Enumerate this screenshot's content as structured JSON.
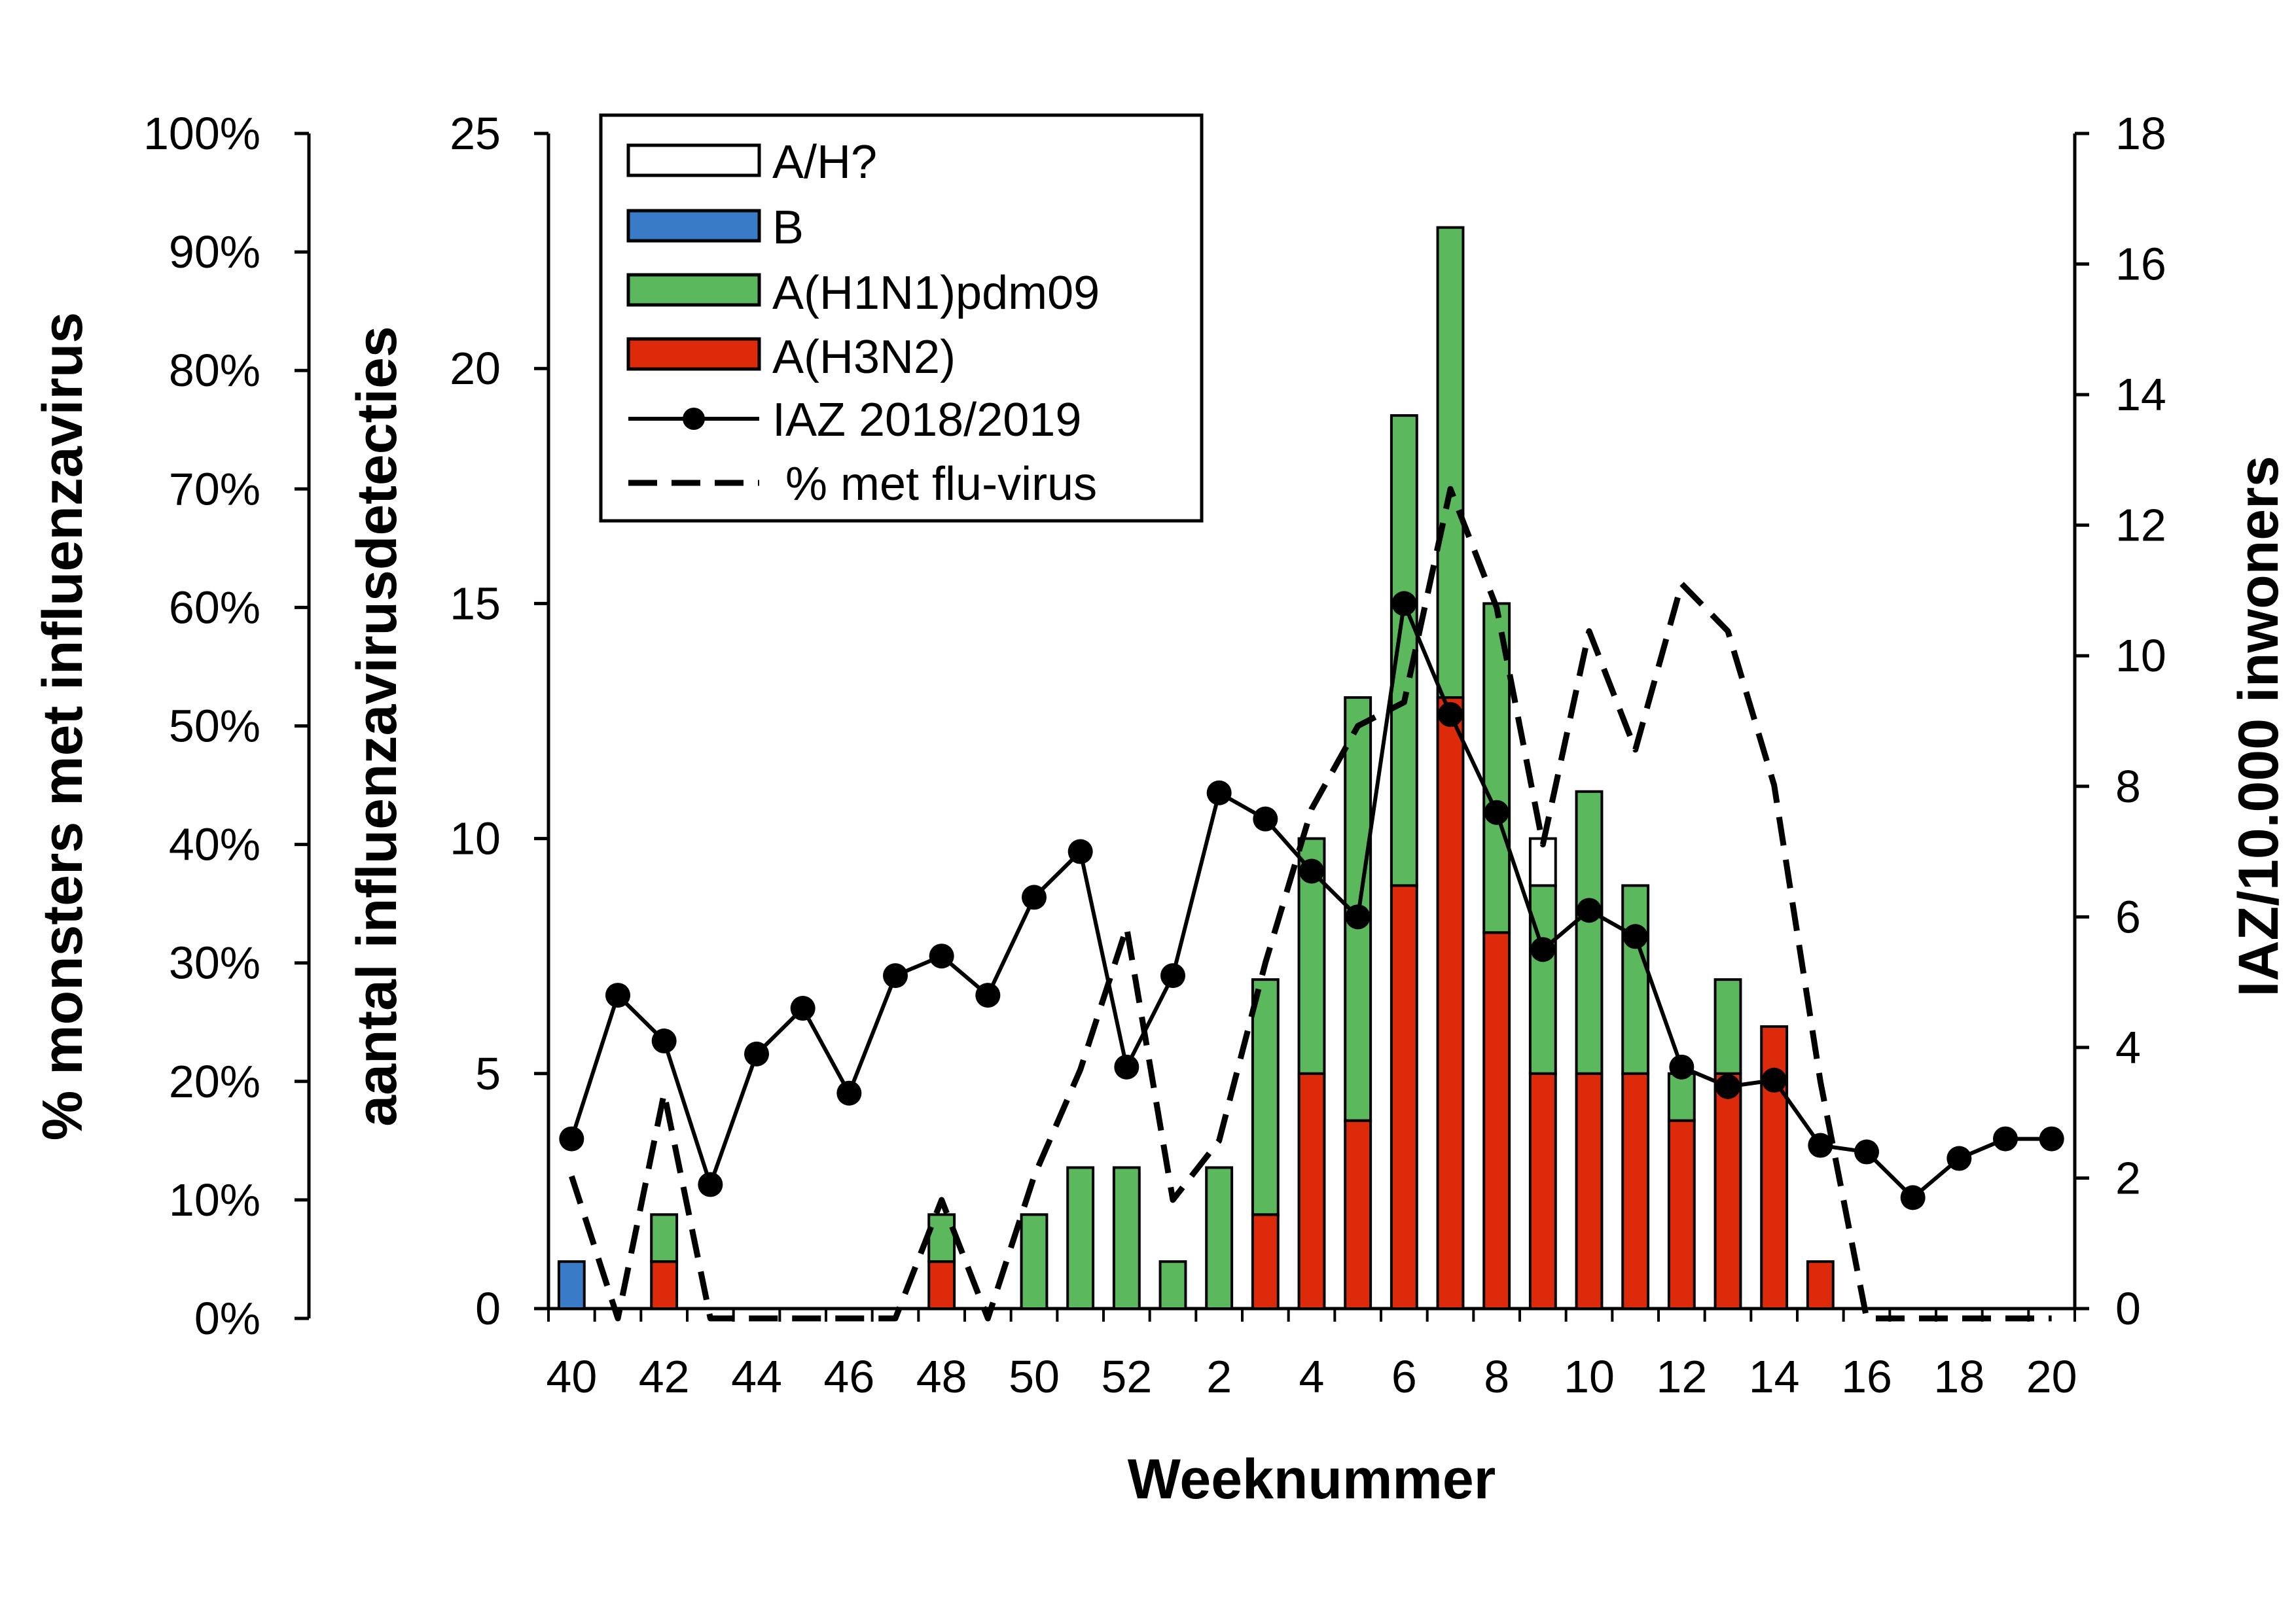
{
  "chart_data": {
    "type": "bar",
    "xlabel": "Weeknummer",
    "ylabel_left_outer": "% monsters met influenzavirus",
    "ylabel_left_inner": "aantal influenzavirusdetecties",
    "ylabel_right": "IAZ/10.000 inwoners",
    "y_left_outer_ticks": [
      "0%",
      "10%",
      "20%",
      "30%",
      "40%",
      "50%",
      "60%",
      "70%",
      "80%",
      "90%",
      "100%"
    ],
    "y_left_inner_ticks": [
      "0",
      "5",
      "10",
      "15",
      "20",
      "25"
    ],
    "y_right_ticks": [
      "0",
      "2",
      "4",
      "6",
      "8",
      "10",
      "12",
      "14",
      "16",
      "18"
    ],
    "ylim_left_outer": [
      0,
      100
    ],
    "ylim_left_inner": [
      0,
      25
    ],
    "ylim_right": [
      0,
      18
    ],
    "weeks": [
      40,
      41,
      42,
      43,
      44,
      45,
      46,
      47,
      48,
      49,
      50,
      51,
      52,
      1,
      2,
      3,
      4,
      5,
      6,
      7,
      8,
      9,
      10,
      11,
      12,
      13,
      14,
      15,
      16,
      17,
      18,
      19,
      20
    ],
    "x_tick_labels": [
      "40",
      "42",
      "44",
      "46",
      "48",
      "50",
      "52",
      "2",
      "4",
      "6",
      "8",
      "10",
      "12",
      "14",
      "16",
      "18",
      "20"
    ],
    "legend_position": "top-left",
    "grid": false,
    "stack_order": [
      "A(H3N2)",
      "A(H1N1)pdm09",
      "B",
      "A/H?"
    ],
    "series": [
      {
        "name": "A(H3N2)",
        "kind": "bar",
        "color": "#dd2a0a",
        "values": [
          0,
          0,
          1,
          0,
          0,
          0,
          0,
          0,
          1,
          0,
          0,
          0,
          0,
          0,
          0,
          2,
          5,
          4,
          9,
          13,
          8,
          5,
          5,
          5,
          4,
          5,
          6,
          1,
          0,
          0,
          0,
          0,
          0
        ]
      },
      {
        "name": "A(H1N1)pdm09",
        "kind": "bar",
        "color": "#5cb85c",
        "values": [
          0,
          0,
          1,
          0,
          0,
          0,
          0,
          0,
          1,
          0,
          2,
          3,
          3,
          1,
          3,
          5,
          5,
          9,
          10,
          10,
          7,
          4,
          6,
          4,
          1,
          2,
          0,
          0,
          0,
          0,
          0,
          0,
          0
        ]
      },
      {
        "name": "B",
        "kind": "bar",
        "color": "#3a7bc8",
        "values": [
          1,
          0,
          0,
          0,
          0,
          0,
          0,
          0,
          0,
          0,
          0,
          0,
          0,
          0,
          0,
          0,
          0,
          0,
          0,
          0,
          0,
          0,
          0,
          0,
          0,
          0,
          0,
          0,
          0,
          0,
          0,
          0,
          0
        ]
      },
      {
        "name": "A/H?",
        "kind": "bar",
        "color": "#ffffff",
        "values": [
          0,
          0,
          0,
          0,
          0,
          0,
          0,
          0,
          0,
          0,
          0,
          0,
          0,
          0,
          0,
          0,
          0,
          0,
          0,
          0,
          0,
          1,
          0,
          0,
          0,
          0,
          0,
          0,
          0,
          0,
          0,
          0,
          0
        ]
      },
      {
        "name": "IAZ 2018/2019",
        "kind": "line-markers",
        "axis": "right",
        "color": "#000000",
        "values": [
          2.6,
          4.8,
          4.1,
          1.9,
          3.9,
          4.6,
          3.3,
          5.1,
          5.4,
          4.8,
          6.3,
          7.0,
          3.7,
          5.1,
          7.9,
          7.5,
          6.7,
          6.0,
          10.8,
          9.1,
          7.6,
          5.5,
          6.1,
          5.7,
          3.7,
          3.4,
          3.5,
          2.5,
          2.4,
          1.7,
          2.3,
          2.6,
          2.6
        ]
      },
      {
        "name": "% met flu-virus",
        "kind": "dashed-line",
        "axis": "left_outer",
        "color": "#000000",
        "values": [
          12,
          0,
          19,
          0,
          0,
          0,
          0,
          0,
          10,
          0,
          12,
          21,
          33,
          10,
          15,
          30,
          43,
          50,
          52,
          70,
          60,
          40,
          58,
          48,
          62,
          58,
          45,
          20,
          0,
          0,
          0,
          0,
          0
        ]
      }
    ]
  }
}
